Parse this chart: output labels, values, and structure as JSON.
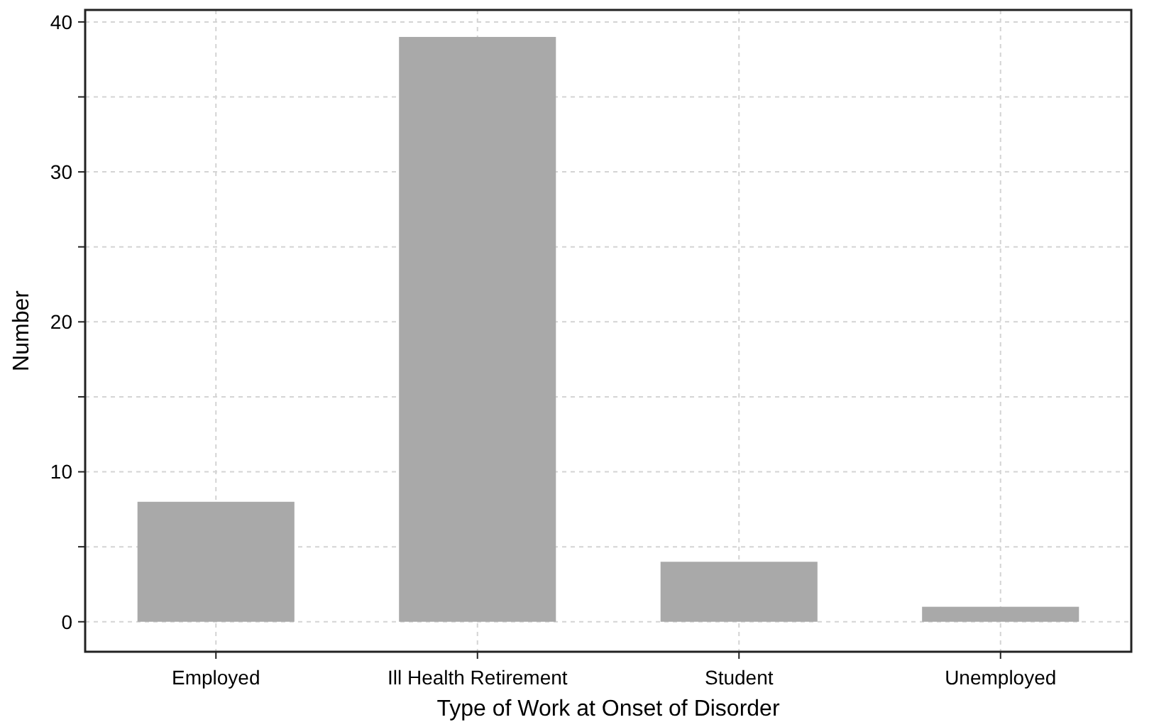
{
  "chart_data": {
    "type": "bar",
    "xlabel": "Type of Work at Onset of Disorder",
    "ylabel": "Number",
    "categories": [
      "Employed",
      "Ill Health Retirement",
      "Student",
      "Unemployed"
    ],
    "values": [
      8,
      39,
      4,
      1
    ],
    "color": "#a9a9a9",
    "ylim": [
      -2,
      40.8
    ],
    "yticks": [
      0,
      {
        "value": 5,
        "label": null
      },
      10,
      {
        "value": 15,
        "label": null
      },
      20,
      {
        "value": 25,
        "label": null
      },
      30,
      {
        "value": 35,
        "label": null
      },
      40
    ],
    "grid": true
  }
}
